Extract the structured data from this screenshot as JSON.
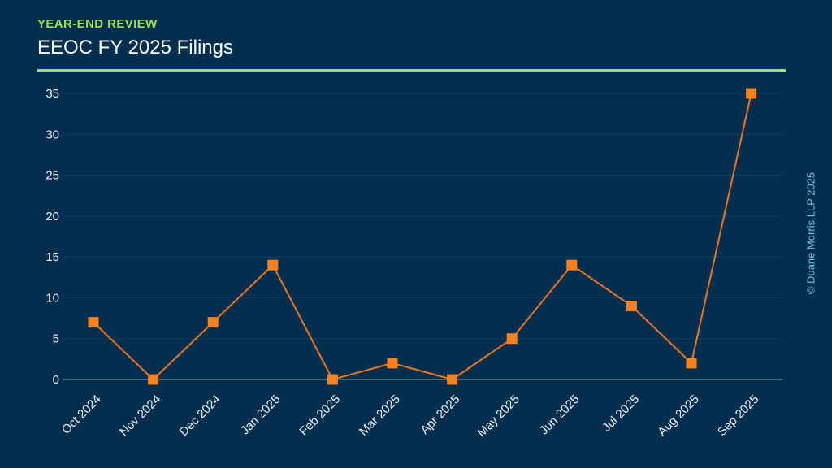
{
  "header": {
    "eyebrow": "YEAR-END REVIEW",
    "title": "EEOC FY 2025 Filings"
  },
  "footer": {
    "copyright": "© Duane Morris LLP 2025"
  },
  "colors": {
    "background": "#032e4e",
    "accent_green": "#9fe052",
    "marker_orange": "#f58220",
    "line_orange": "#e87722",
    "gridline": "#103d5f",
    "axis_line": "#6c87a0",
    "tick_label": "#eef2f5",
    "title_white": "#fbfdfe",
    "copyright_blue": "#74c6e4"
  },
  "chart_data": {
    "type": "line",
    "title": "EEOC FY 2025 Filings",
    "categories": [
      "Oct 2024",
      "Nov 2024",
      "Dec 2024",
      "Jan 2025",
      "Feb 2025",
      "Mar 2025",
      "Apr 2025",
      "May 2025",
      "Jun 2025",
      "Jul 2025",
      "Aug 2025",
      "Sep 2025"
    ],
    "values": [
      7,
      0,
      7,
      14,
      0,
      2,
      0,
      5,
      14,
      9,
      2,
      35
    ],
    "xlabel": "",
    "ylabel": "",
    "ylim": [
      0,
      35
    ],
    "yticks": [
      0,
      5,
      10,
      15,
      20,
      25,
      30,
      35
    ],
    "grid": "horizontal",
    "legend": "none",
    "marker": "square"
  }
}
